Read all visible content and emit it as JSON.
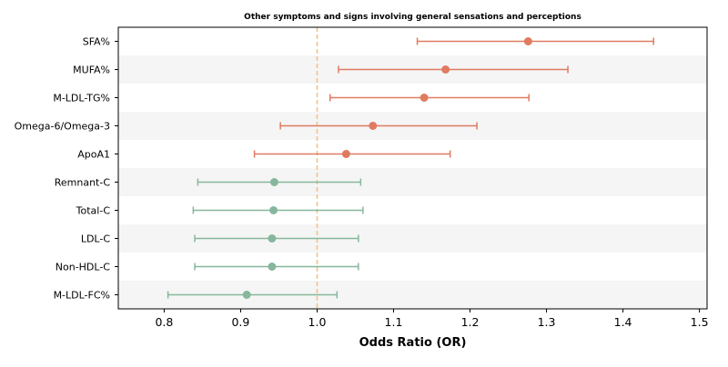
{
  "chart_data": {
    "type": "forest",
    "title": "Other symptoms and signs involving general sensations and perceptions",
    "xlabel": "Odds Ratio (OR)",
    "ylabel": "",
    "xlim": [
      0.74,
      1.51
    ],
    "xticks": [
      "0.8",
      "0.9",
      "1.0",
      "1.1",
      "1.2",
      "1.3",
      "1.4",
      "1.5"
    ],
    "reference_line": 1.0,
    "band_stripes": true,
    "colors": {
      "positive": "#e07b62",
      "negative": "#86b79c",
      "reference": "#f2c27e",
      "stripe": "#f5f5f5"
    },
    "rows": [
      {
        "label": "SFA%",
        "or": 1.276,
        "lower": 1.131,
        "upper": 1.44,
        "group": "positive"
      },
      {
        "label": "MUFA%",
        "or": 1.168,
        "lower": 1.028,
        "upper": 1.328,
        "group": "positive"
      },
      {
        "label": "M-LDL-TG%",
        "or": 1.14,
        "lower": 1.017,
        "upper": 1.277,
        "group": "positive"
      },
      {
        "label": "Omega-6/Omega-3",
        "or": 1.073,
        "lower": 0.952,
        "upper": 1.209,
        "group": "positive"
      },
      {
        "label": "ApoA1",
        "or": 1.038,
        "lower": 0.918,
        "upper": 1.174,
        "group": "positive"
      },
      {
        "label": "Remnant-C",
        "or": 0.944,
        "lower": 0.844,
        "upper": 1.057,
        "group": "negative"
      },
      {
        "label": "Total-C",
        "or": 0.943,
        "lower": 0.838,
        "upper": 1.06,
        "group": "negative"
      },
      {
        "label": "LDL-C",
        "or": 0.941,
        "lower": 0.84,
        "upper": 1.054,
        "group": "negative"
      },
      {
        "label": "Non-HDL-C",
        "or": 0.941,
        "lower": 0.84,
        "upper": 1.054,
        "group": "negative"
      },
      {
        "label": "M-LDL-FC%",
        "or": 0.908,
        "lower": 0.805,
        "upper": 1.026,
        "group": "negative"
      }
    ]
  }
}
